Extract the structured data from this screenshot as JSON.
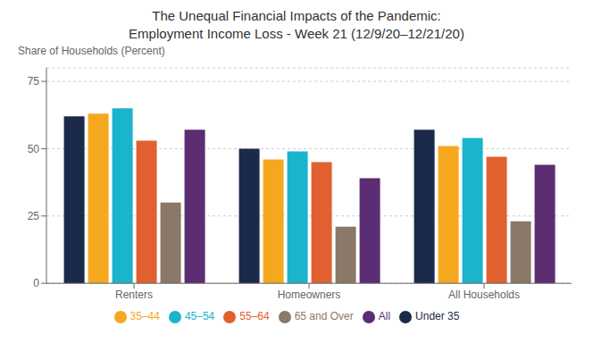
{
  "chart_data": {
    "type": "bar",
    "title": "The Unequal Financial Impacts of the Pandemic:",
    "subtitle": "Employment Income Loss - Week 21 (12/9/20–12/21/20)",
    "ylabel": "Share of Households (Percent)",
    "categories": [
      "Renters",
      "Homeowners",
      "All Households"
    ],
    "series": [
      {
        "name": "Under 35",
        "color": "#1b2a4a",
        "values": [
          62,
          50,
          57
        ]
      },
      {
        "name": "35–44",
        "color": "#f5a81e",
        "values": [
          63,
          46,
          51
        ]
      },
      {
        "name": "45–54",
        "color": "#1ab4cc",
        "values": [
          65,
          49,
          54
        ]
      },
      {
        "name": "55–64",
        "color": "#e06030",
        "values": [
          53,
          45,
          47
        ]
      },
      {
        "name": "65 and Over",
        "color": "#8a7868",
        "values": [
          30,
          21,
          23
        ]
      },
      {
        "name": "All",
        "color": "#5c2d72",
        "values": [
          57,
          39,
          44
        ]
      }
    ],
    "ylim": [
      0,
      80
    ],
    "yticks": [
      0,
      25,
      50,
      75
    ],
    "grid": true,
    "legend": "bottom"
  }
}
